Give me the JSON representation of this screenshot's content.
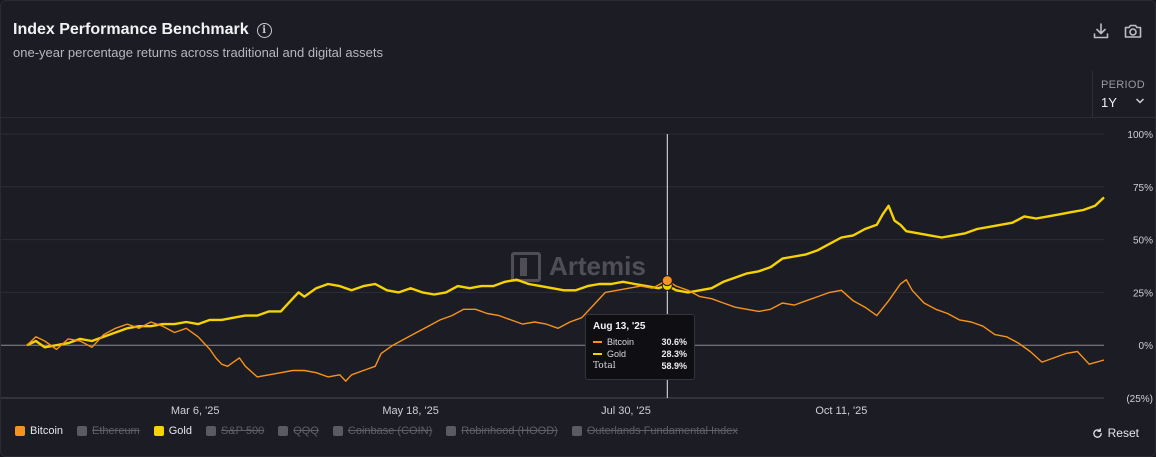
{
  "header": {
    "title": "Index Performance Benchmark",
    "subtitle": "one-year percentage returns across traditional and digital assets",
    "info_icon": "info-icon",
    "download_icon": "download-icon",
    "camera_icon": "camera-icon"
  },
  "period": {
    "label": "PERIOD",
    "value": "1Y"
  },
  "watermark": "Artemis",
  "legend": [
    {
      "label": "Bitcoin",
      "color": "#f7931a",
      "active": true
    },
    {
      "label": "Ethereum",
      "color": "#5a5a63",
      "active": false
    },
    {
      "label": "Gold",
      "color": "#f5d300",
      "active": true
    },
    {
      "label": "S&P 500",
      "color": "#5a5a63",
      "active": false
    },
    {
      "label": "QQQ",
      "color": "#5a5a63",
      "active": false
    },
    {
      "label": "Coinbase (COIN)",
      "color": "#5a5a63",
      "active": false
    },
    {
      "label": "Robinhood (HOOD)",
      "color": "#5a5a63",
      "active": false
    },
    {
      "label": "Outerlands Fundamental Index",
      "color": "#5a5a63",
      "active": false
    }
  ],
  "reset_label": "Reset",
  "tooltip": {
    "date": "Aug 13, '25",
    "rows": [
      {
        "name": "Bitcoin",
        "value": "30.6%",
        "color": "#f7931a"
      },
      {
        "name": "Gold",
        "value": "28.3%",
        "color": "#f5d300"
      },
      {
        "name": "Total",
        "value": "58.9%",
        "color": ""
      }
    ]
  },
  "chart_data": {
    "type": "line",
    "title": "Index Performance Benchmark",
    "subtitle": "one-year percentage returns across traditional and digital assets",
    "x_range": [
      0,
      365
    ],
    "x_ticks": [
      {
        "day": 57,
        "label": "Mar 6, '25"
      },
      {
        "day": 130,
        "label": "May 18, '25"
      },
      {
        "day": 203,
        "label": "Jul 30, '25"
      },
      {
        "day": 276,
        "label": "Oct 11, '25"
      }
    ],
    "y_ticks": [
      {
        "value": 100,
        "label": "100%"
      },
      {
        "value": 75,
        "label": "75%"
      },
      {
        "value": 50,
        "label": "50%"
      },
      {
        "value": 25,
        "label": "25%"
      },
      {
        "value": 0,
        "label": "0%"
      },
      {
        "value": -25,
        "label": "(25%)"
      }
    ],
    "ylim": [
      -25,
      100
    ],
    "crosshair_day": 217,
    "series": [
      {
        "name": "Gold",
        "color": "#f5d300",
        "points": [
          [
            0,
            0
          ],
          [
            3,
            2
          ],
          [
            6,
            -1
          ],
          [
            10,
            0
          ],
          [
            14,
            1
          ],
          [
            18,
            3
          ],
          [
            22,
            2
          ],
          [
            26,
            4
          ],
          [
            30,
            6
          ],
          [
            34,
            8
          ],
          [
            38,
            9
          ],
          [
            42,
            9
          ],
          [
            46,
            10
          ],
          [
            50,
            10
          ],
          [
            54,
            11
          ],
          [
            58,
            10
          ],
          [
            62,
            12
          ],
          [
            66,
            12
          ],
          [
            70,
            13
          ],
          [
            74,
            14
          ],
          [
            78,
            14
          ],
          [
            82,
            16
          ],
          [
            86,
            16
          ],
          [
            90,
            22
          ],
          [
            92,
            25
          ],
          [
            94,
            23
          ],
          [
            98,
            27
          ],
          [
            102,
            29
          ],
          [
            106,
            28
          ],
          [
            110,
            26
          ],
          [
            114,
            28
          ],
          [
            118,
            29
          ],
          [
            122,
            26
          ],
          [
            126,
            25
          ],
          [
            130,
            27
          ],
          [
            134,
            25
          ],
          [
            138,
            24
          ],
          [
            142,
            25
          ],
          [
            146,
            28
          ],
          [
            150,
            27
          ],
          [
            154,
            28
          ],
          [
            158,
            28
          ],
          [
            162,
            30
          ],
          [
            166,
            31
          ],
          [
            170,
            29
          ],
          [
            174,
            28
          ],
          [
            178,
            27
          ],
          [
            182,
            26
          ],
          [
            186,
            26
          ],
          [
            190,
            28
          ],
          [
            194,
            29
          ],
          [
            198,
            29
          ],
          [
            202,
            30
          ],
          [
            206,
            29
          ],
          [
            210,
            28
          ],
          [
            214,
            27
          ],
          [
            217,
            28.3
          ],
          [
            220,
            26
          ],
          [
            224,
            25
          ],
          [
            228,
            26
          ],
          [
            232,
            27
          ],
          [
            236,
            30
          ],
          [
            240,
            32
          ],
          [
            244,
            34
          ],
          [
            248,
            35
          ],
          [
            252,
            37
          ],
          [
            256,
            41
          ],
          [
            260,
            42
          ],
          [
            264,
            43
          ],
          [
            268,
            45
          ],
          [
            272,
            48
          ],
          [
            276,
            51
          ],
          [
            280,
            52
          ],
          [
            284,
            55
          ],
          [
            288,
            57
          ],
          [
            290,
            62
          ],
          [
            292,
            66
          ],
          [
            294,
            59
          ],
          [
            296,
            57
          ],
          [
            298,
            54
          ],
          [
            302,
            53
          ],
          [
            306,
            52
          ],
          [
            310,
            51
          ],
          [
            314,
            52
          ],
          [
            318,
            53
          ],
          [
            322,
            55
          ],
          [
            326,
            56
          ],
          [
            330,
            57
          ],
          [
            334,
            58
          ],
          [
            338,
            61
          ],
          [
            342,
            60
          ],
          [
            346,
            61
          ],
          [
            350,
            62
          ],
          [
            354,
            63
          ],
          [
            358,
            64
          ],
          [
            362,
            66
          ],
          [
            365,
            70
          ]
        ]
      },
      {
        "name": "Bitcoin",
        "color": "#f7931a",
        "points": [
          [
            0,
            0
          ],
          [
            3,
            4
          ],
          [
            6,
            2
          ],
          [
            10,
            -2
          ],
          [
            14,
            3
          ],
          [
            18,
            2
          ],
          [
            22,
            -1
          ],
          [
            26,
            5
          ],
          [
            30,
            8
          ],
          [
            34,
            10
          ],
          [
            38,
            8
          ],
          [
            42,
            11
          ],
          [
            46,
            9
          ],
          [
            50,
            6
          ],
          [
            54,
            8
          ],
          [
            58,
            4
          ],
          [
            62,
            -2
          ],
          [
            64,
            -6
          ],
          [
            66,
            -9
          ],
          [
            68,
            -10
          ],
          [
            70,
            -8
          ],
          [
            72,
            -6
          ],
          [
            74,
            -10
          ],
          [
            78,
            -15
          ],
          [
            82,
            -14
          ],
          [
            86,
            -13
          ],
          [
            90,
            -12
          ],
          [
            94,
            -12
          ],
          [
            98,
            -13
          ],
          [
            102,
            -15
          ],
          [
            106,
            -14
          ],
          [
            108,
            -17
          ],
          [
            110,
            -14
          ],
          [
            114,
            -12
          ],
          [
            118,
            -10
          ],
          [
            120,
            -4
          ],
          [
            124,
            0
          ],
          [
            128,
            3
          ],
          [
            132,
            6
          ],
          [
            136,
            9
          ],
          [
            140,
            12
          ],
          [
            144,
            14
          ],
          [
            148,
            17
          ],
          [
            152,
            17
          ],
          [
            156,
            15
          ],
          [
            160,
            14
          ],
          [
            164,
            12
          ],
          [
            168,
            10
          ],
          [
            172,
            11
          ],
          [
            176,
            10
          ],
          [
            180,
            8
          ],
          [
            184,
            11
          ],
          [
            188,
            13
          ],
          [
            192,
            19
          ],
          [
            196,
            25
          ],
          [
            200,
            26
          ],
          [
            204,
            27
          ],
          [
            208,
            28
          ],
          [
            212,
            27
          ],
          [
            216,
            30
          ],
          [
            217,
            30.6
          ],
          [
            220,
            28
          ],
          [
            224,
            26
          ],
          [
            228,
            23
          ],
          [
            232,
            22
          ],
          [
            236,
            20
          ],
          [
            240,
            18
          ],
          [
            244,
            17
          ],
          [
            248,
            16
          ],
          [
            252,
            17
          ],
          [
            256,
            20
          ],
          [
            260,
            19
          ],
          [
            264,
            21
          ],
          [
            268,
            23
          ],
          [
            272,
            25
          ],
          [
            276,
            26
          ],
          [
            280,
            21
          ],
          [
            284,
            18
          ],
          [
            288,
            14
          ],
          [
            292,
            21
          ],
          [
            296,
            29
          ],
          [
            298,
            31
          ],
          [
            300,
            26
          ],
          [
            304,
            20
          ],
          [
            308,
            17
          ],
          [
            312,
            15
          ],
          [
            316,
            12
          ],
          [
            320,
            11
          ],
          [
            324,
            9
          ],
          [
            328,
            5
          ],
          [
            332,
            4
          ],
          [
            336,
            1
          ],
          [
            340,
            -3
          ],
          [
            344,
            -8
          ],
          [
            348,
            -6
          ],
          [
            352,
            -4
          ],
          [
            356,
            -3
          ],
          [
            360,
            -9
          ],
          [
            365,
            -7
          ]
        ]
      }
    ]
  }
}
